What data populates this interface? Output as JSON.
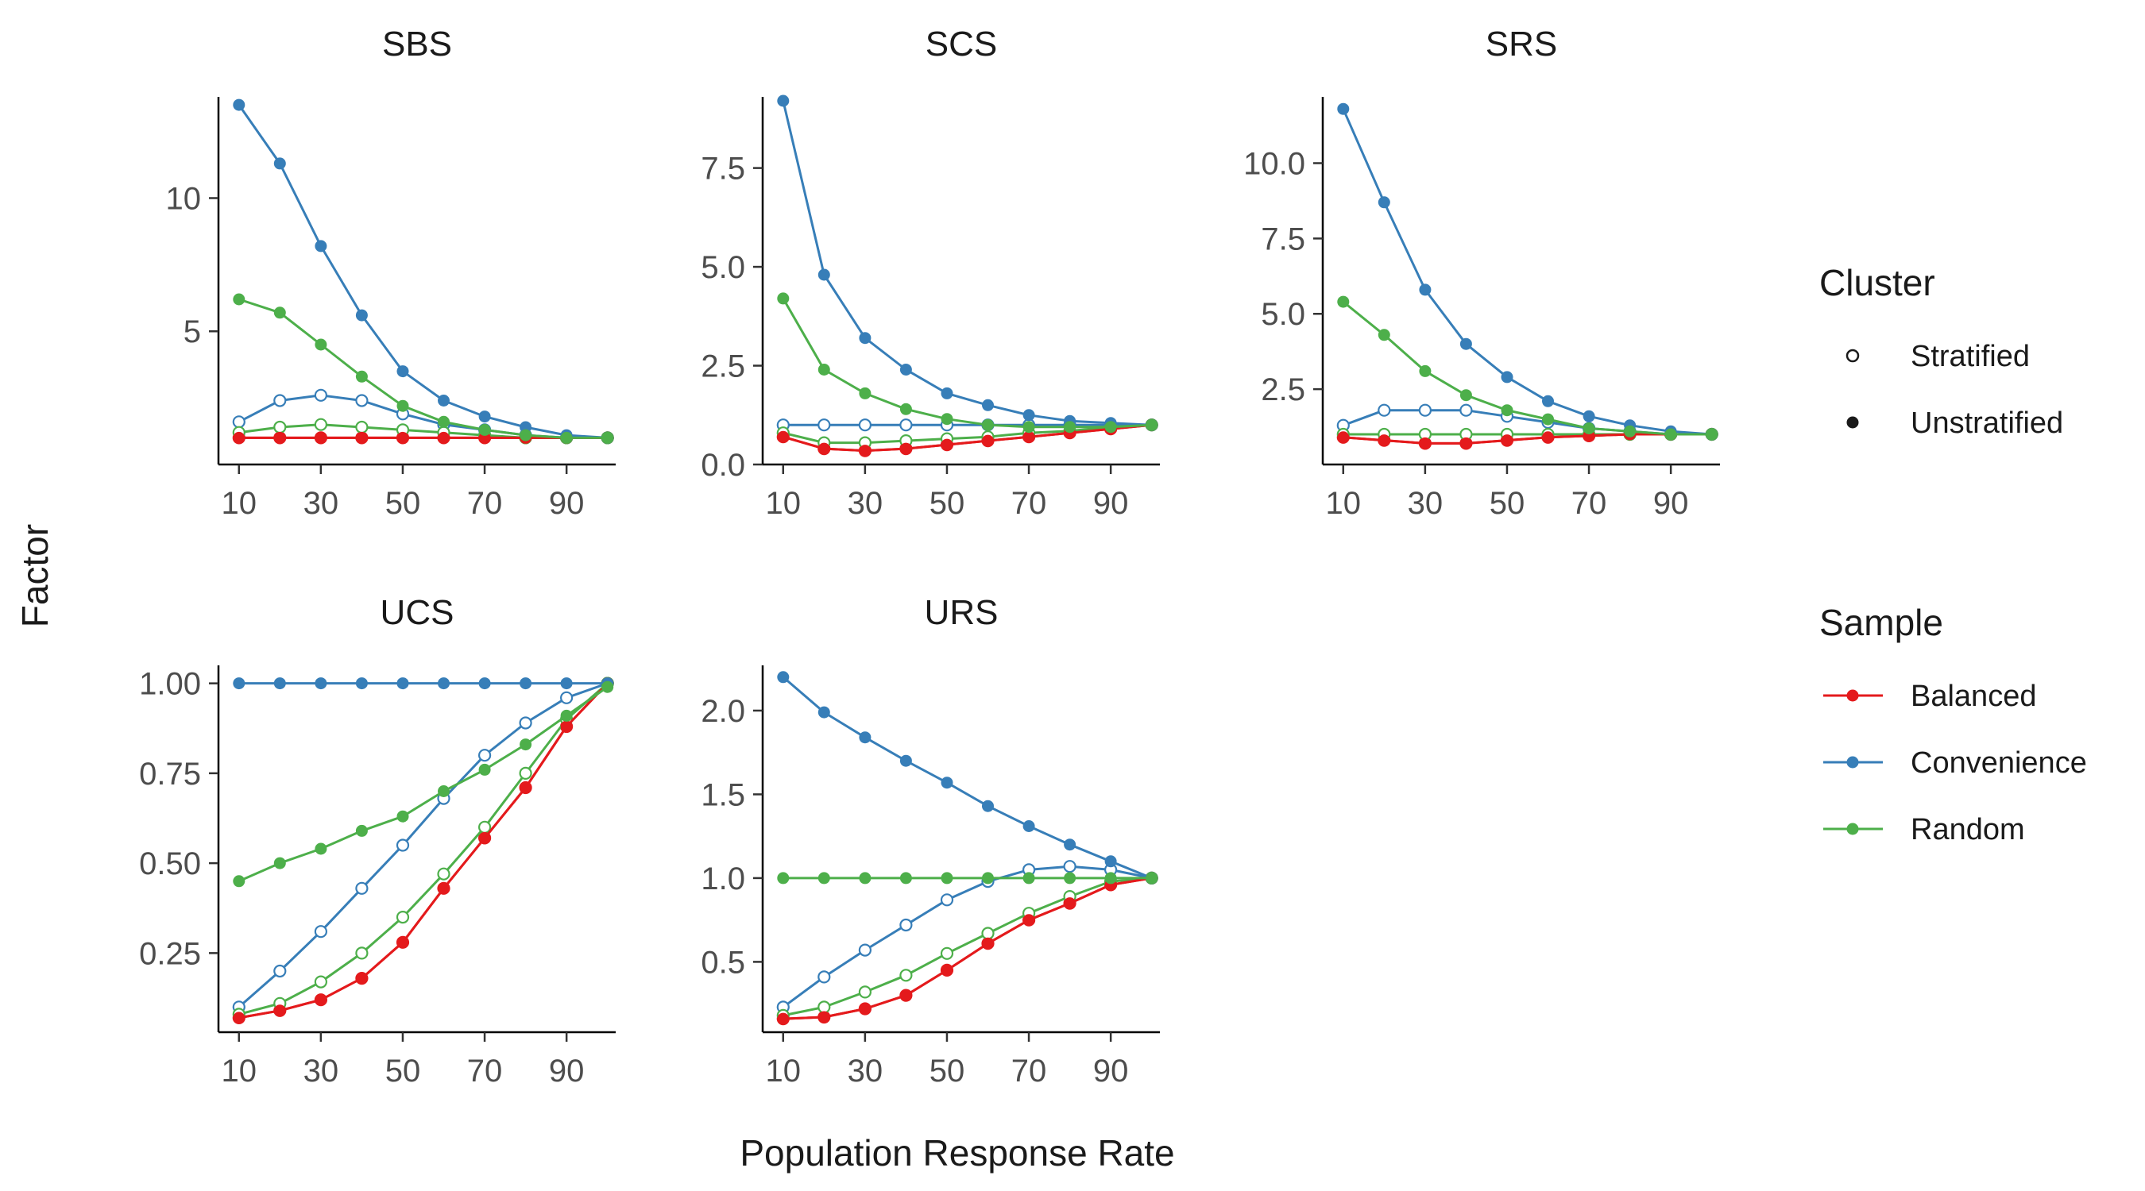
{
  "chart_data": {
    "type": "line",
    "xlabel": "Population Response Rate",
    "ylabel": "Factor",
    "x": [
      10,
      20,
      30,
      40,
      50,
      60,
      70,
      80,
      90,
      100
    ],
    "x_ticks": [
      10,
      30,
      50,
      70,
      90
    ],
    "x_range": [
      5,
      102
    ],
    "colors": {
      "Balanced": "#e41a1c",
      "Convenience": "#377eb8",
      "Random": "#4daf4a"
    },
    "legend": {
      "placement": "right",
      "cluster_title": "Cluster",
      "cluster_items": [
        {
          "label": "Stratified",
          "marker": "open-circle"
        },
        {
          "label": "Unstratified",
          "marker": "filled-circle"
        }
      ],
      "sample_title": "Sample",
      "sample_items": [
        "Balanced",
        "Convenience",
        "Random"
      ]
    },
    "panels": [
      {
        "title": "SBS",
        "ylim": [
          0.0,
          13.8
        ],
        "y_ticks": [
          5,
          10
        ],
        "y_tick_labels": [
          "5",
          "10"
        ],
        "series": [
          {
            "sample": "Balanced",
            "cluster": "Stratified",
            "values": [
              1.0,
              1.0,
              1.0,
              1.0,
              1.0,
              1.0,
              1.0,
              1.0,
              1.0,
              1.0
            ]
          },
          {
            "sample": "Balanced",
            "cluster": "Unstratified",
            "values": [
              1.0,
              1.0,
              1.0,
              1.0,
              1.0,
              1.0,
              1.0,
              1.0,
              1.0,
              1.0
            ]
          },
          {
            "sample": "Convenience",
            "cluster": "Stratified",
            "values": [
              1.6,
              2.4,
              2.6,
              2.4,
              1.9,
              1.5,
              1.3,
              1.1,
              1.0,
              1.0
            ]
          },
          {
            "sample": "Convenience",
            "cluster": "Unstratified",
            "values": [
              13.5,
              11.3,
              8.2,
              5.6,
              3.5,
              2.4,
              1.8,
              1.4,
              1.1,
              1.0
            ]
          },
          {
            "sample": "Random",
            "cluster": "Stratified",
            "values": [
              1.2,
              1.4,
              1.5,
              1.4,
              1.3,
              1.2,
              1.1,
              1.0,
              1.0,
              1.0
            ]
          },
          {
            "sample": "Random",
            "cluster": "Unstratified",
            "values": [
              6.2,
              5.7,
              4.5,
              3.3,
              2.2,
              1.6,
              1.3,
              1.1,
              1.0,
              1.0
            ]
          }
        ]
      },
      {
        "title": "SCS",
        "ylim": [
          0.0,
          9.3
        ],
        "y_ticks": [
          0,
          2.5,
          5,
          7.5
        ],
        "y_tick_labels": [
          "0.0",
          "2.5",
          "5.0",
          "7.5"
        ],
        "series": [
          {
            "sample": "Balanced",
            "cluster": "Stratified",
            "values": [
              0.7,
              0.4,
              0.35,
              0.4,
              0.5,
              0.6,
              0.7,
              0.8,
              0.9,
              1.0
            ]
          },
          {
            "sample": "Balanced",
            "cluster": "Unstratified",
            "values": [
              0.7,
              0.4,
              0.35,
              0.4,
              0.5,
              0.6,
              0.7,
              0.8,
              0.9,
              1.0
            ]
          },
          {
            "sample": "Convenience",
            "cluster": "Stratified",
            "values": [
              1.0,
              1.0,
              1.0,
              1.0,
              1.0,
              1.0,
              1.0,
              1.0,
              1.0,
              1.0
            ]
          },
          {
            "sample": "Convenience",
            "cluster": "Unstratified",
            "values": [
              9.2,
              4.8,
              3.2,
              2.4,
              1.8,
              1.5,
              1.25,
              1.1,
              1.05,
              1.0
            ]
          },
          {
            "sample": "Random",
            "cluster": "Stratified",
            "values": [
              0.8,
              0.55,
              0.55,
              0.6,
              0.65,
              0.7,
              0.8,
              0.85,
              0.95,
              1.0
            ]
          },
          {
            "sample": "Random",
            "cluster": "Unstratified",
            "values": [
              4.2,
              2.4,
              1.8,
              1.4,
              1.15,
              1.0,
              0.95,
              0.95,
              0.95,
              1.0
            ]
          }
        ]
      },
      {
        "title": "SRS",
        "ylim": [
          0.0,
          12.2
        ],
        "y_ticks": [
          2.5,
          5,
          7.5,
          10
        ],
        "y_tick_labels": [
          "2.5",
          "5.0",
          "7.5",
          "10.0"
        ],
        "series": [
          {
            "sample": "Balanced",
            "cluster": "Stratified",
            "values": [
              0.9,
              0.8,
              0.7,
              0.7,
              0.8,
              0.9,
              0.95,
              1.0,
              1.0,
              1.0
            ]
          },
          {
            "sample": "Balanced",
            "cluster": "Unstratified",
            "values": [
              0.9,
              0.8,
              0.7,
              0.7,
              0.8,
              0.9,
              0.95,
              1.0,
              1.0,
              1.0
            ]
          },
          {
            "sample": "Convenience",
            "cluster": "Stratified",
            "values": [
              1.3,
              1.8,
              1.8,
              1.8,
              1.6,
              1.4,
              1.2,
              1.1,
              1.0,
              1.0
            ]
          },
          {
            "sample": "Convenience",
            "cluster": "Unstratified",
            "values": [
              11.8,
              8.7,
              5.8,
              4.0,
              2.9,
              2.1,
              1.6,
              1.3,
              1.1,
              1.0
            ]
          },
          {
            "sample": "Random",
            "cluster": "Stratified",
            "values": [
              1.0,
              1.0,
              1.0,
              1.0,
              1.0,
              1.0,
              1.0,
              1.0,
              1.0,
              1.0
            ]
          },
          {
            "sample": "Random",
            "cluster": "Unstratified",
            "values": [
              5.4,
              4.3,
              3.1,
              2.3,
              1.8,
              1.5,
              1.2,
              1.1,
              1.0,
              1.0
            ]
          }
        ]
      },
      {
        "title": "UCS",
        "ylim": [
          0.03,
          1.05
        ],
        "y_ticks": [
          0.25,
          0.5,
          0.75,
          1.0
        ],
        "y_tick_labels": [
          "0.25",
          "0.50",
          "0.75",
          "1.00"
        ],
        "series": [
          {
            "sample": "Balanced",
            "cluster": "Stratified",
            "values": [
              0.07,
              0.09,
              0.12,
              0.18,
              0.28,
              0.43,
              0.57,
              0.71,
              0.88,
              1.0
            ]
          },
          {
            "sample": "Balanced",
            "cluster": "Unstratified",
            "values": [
              0.07,
              0.09,
              0.12,
              0.18,
              0.28,
              0.43,
              0.57,
              0.71,
              0.88,
              1.0
            ]
          },
          {
            "sample": "Convenience",
            "cluster": "Stratified",
            "values": [
              0.1,
              0.2,
              0.31,
              0.43,
              0.55,
              0.68,
              0.8,
              0.89,
              0.96,
              1.0
            ]
          },
          {
            "sample": "Convenience",
            "cluster": "Unstratified",
            "values": [
              1.0,
              1.0,
              1.0,
              1.0,
              1.0,
              1.0,
              1.0,
              1.0,
              1.0,
              1.0
            ]
          },
          {
            "sample": "Random",
            "cluster": "Stratified",
            "values": [
              0.08,
              0.11,
              0.17,
              0.25,
              0.35,
              0.47,
              0.6,
              0.75,
              0.9,
              1.0
            ]
          },
          {
            "sample": "Random",
            "cluster": "Unstratified",
            "values": [
              0.45,
              0.5,
              0.54,
              0.59,
              0.63,
              0.7,
              0.76,
              0.83,
              0.91,
              0.99
            ]
          }
        ]
      },
      {
        "title": "URS",
        "ylim": [
          0.08,
          2.27
        ],
        "y_ticks": [
          0.5,
          1.0,
          1.5,
          2.0
        ],
        "y_tick_labels": [
          "0.5",
          "1.0",
          "1.5",
          "2.0"
        ],
        "series": [
          {
            "sample": "Balanced",
            "cluster": "Stratified",
            "values": [
              0.16,
              0.17,
              0.22,
              0.3,
              0.45,
              0.61,
              0.75,
              0.85,
              0.96,
              1.0
            ]
          },
          {
            "sample": "Balanced",
            "cluster": "Unstratified",
            "values": [
              0.16,
              0.17,
              0.22,
              0.3,
              0.45,
              0.61,
              0.75,
              0.85,
              0.96,
              1.0
            ]
          },
          {
            "sample": "Convenience",
            "cluster": "Stratified",
            "values": [
              0.23,
              0.41,
              0.57,
              0.72,
              0.87,
              0.98,
              1.05,
              1.07,
              1.05,
              1.0
            ]
          },
          {
            "sample": "Convenience",
            "cluster": "Unstratified",
            "values": [
              2.2,
              1.99,
              1.84,
              1.7,
              1.57,
              1.43,
              1.31,
              1.2,
              1.1,
              1.0
            ]
          },
          {
            "sample": "Random",
            "cluster": "Stratified",
            "values": [
              0.18,
              0.23,
              0.32,
              0.42,
              0.55,
              0.67,
              0.79,
              0.89,
              0.98,
              1.0
            ]
          },
          {
            "sample": "Random",
            "cluster": "Unstratified",
            "values": [
              1.0,
              1.0,
              1.0,
              1.0,
              1.0,
              1.0,
              1.0,
              1.0,
              1.0,
              1.0
            ]
          }
        ]
      }
    ]
  }
}
